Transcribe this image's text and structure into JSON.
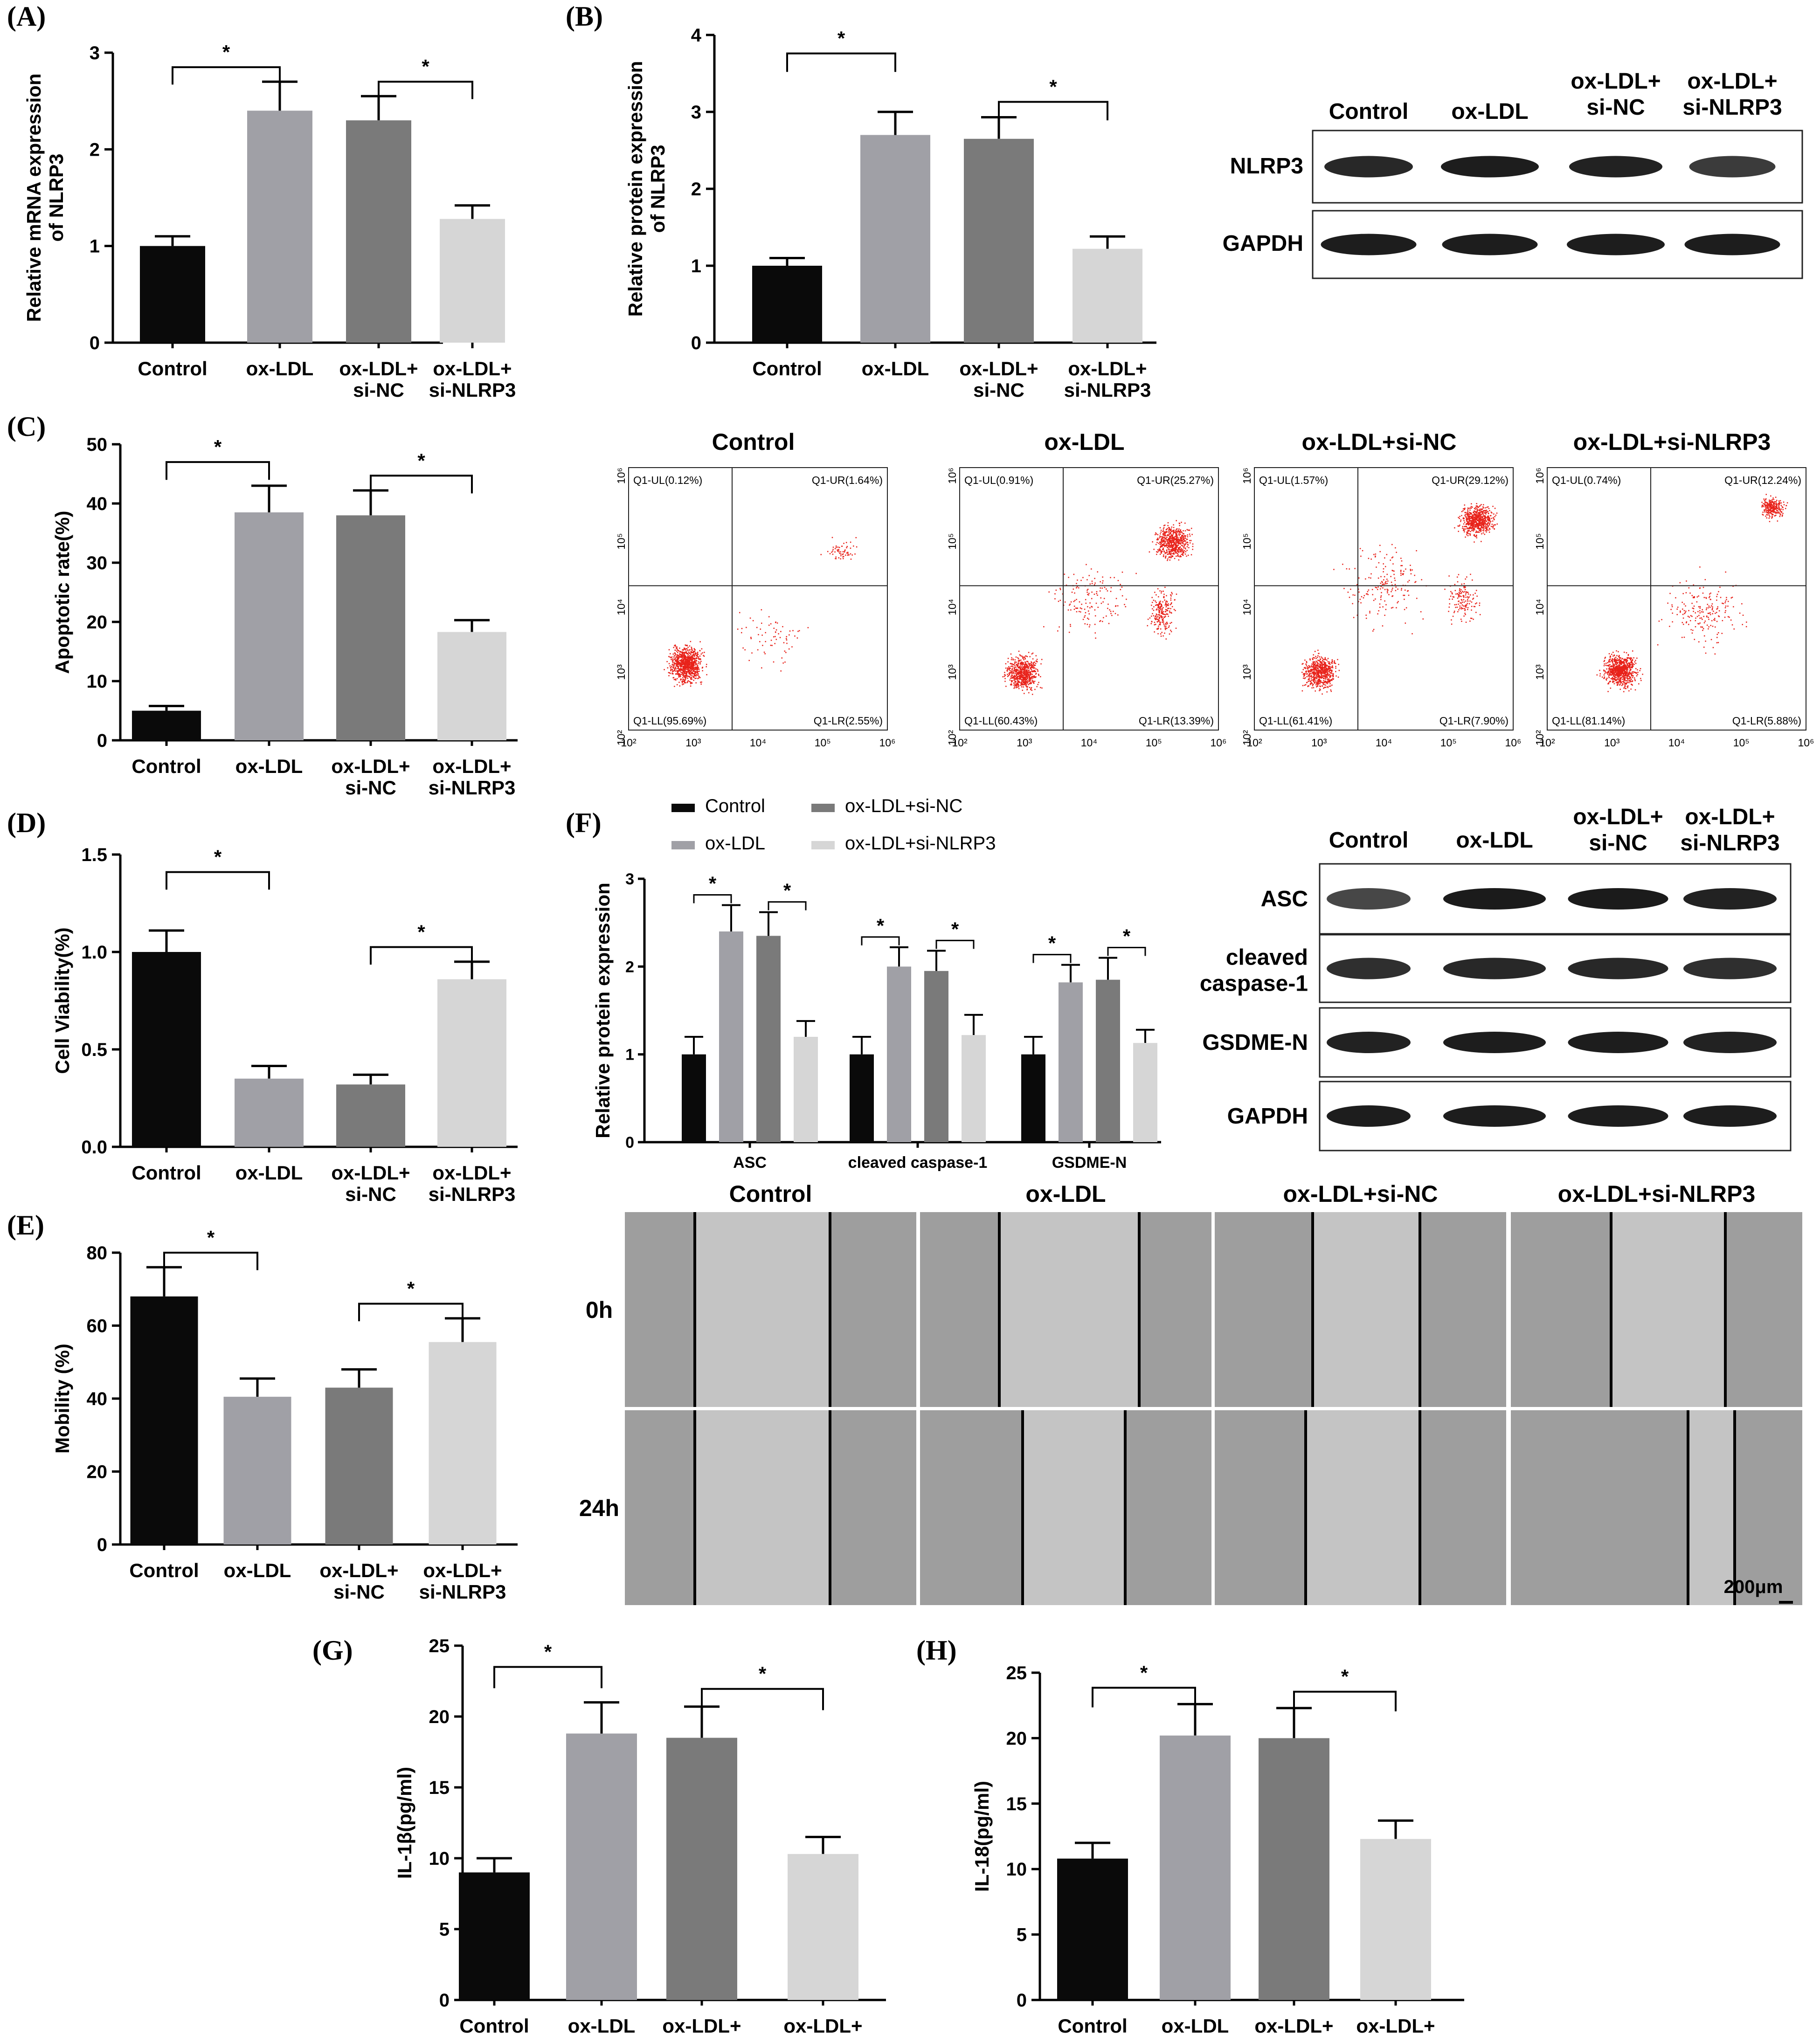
{
  "colors": {
    "control": "#0a0a0a",
    "oxldl": "#a0a0a6",
    "sinc": "#7a7a7a",
    "sinlrp3": "#d6d6d6",
    "dot": "#e8221a"
  },
  "groups": [
    [
      "Control"
    ],
    [
      "ox-LDL"
    ],
    [
      "ox-LDL+",
      "si-NC"
    ],
    [
      "ox-LDL+",
      "si-NLRP3"
    ]
  ],
  "group_titles": [
    "Control",
    "ox-LDL",
    "ox-LDL+si-NC",
    "ox-LDL+si-NLRP3"
  ],
  "chart_data": [
    {
      "id": "A",
      "type": "bar",
      "panel": "(A)",
      "ylabel": [
        "Relative mRNA expression",
        "of NLRP3"
      ],
      "ylim": [
        0,
        3
      ],
      "yticks": [
        0,
        1,
        2,
        3
      ],
      "values": [
        1.0,
        2.4,
        2.3,
        1.28
      ],
      "errors": [
        0.1,
        0.3,
        0.25,
        0.14
      ],
      "significance": "*"
    },
    {
      "id": "B",
      "type": "bar",
      "panel": "(B)",
      "ylabel": [
        "Relative protein expression",
        "of NLRP3"
      ],
      "ylim": [
        0,
        4
      ],
      "yticks": [
        0,
        1,
        2,
        3,
        4
      ],
      "values": [
        1.0,
        2.7,
        2.65,
        1.22
      ],
      "errors": [
        0.1,
        0.3,
        0.28,
        0.16
      ],
      "significance": "*"
    },
    {
      "id": "C",
      "type": "bar",
      "panel": "(C)",
      "ylabel": [
        "Apoptotic rate(%)"
      ],
      "ylim": [
        0,
        50
      ],
      "yticks": [
        0,
        10,
        20,
        30,
        40,
        50
      ],
      "values": [
        5.0,
        38.5,
        38.0,
        18.3
      ],
      "errors": [
        0.8,
        4.5,
        4.2,
        2.0
      ],
      "significance": "*"
    },
    {
      "id": "D",
      "type": "bar",
      "panel": "(D)",
      "ylabel": [
        "Cell Viability(%)"
      ],
      "ylim": [
        0,
        1.5
      ],
      "yticks": [
        "0.0",
        "0.5",
        "1.0",
        "1.5"
      ],
      "values": [
        1.0,
        0.35,
        0.32,
        0.86
      ],
      "errors": [
        0.11,
        0.065,
        0.05,
        0.09
      ],
      "significance": "*"
    },
    {
      "id": "E",
      "type": "bar",
      "panel": "(E)",
      "ylabel": [
        "Mobility (%)"
      ],
      "ylim": [
        0,
        80
      ],
      "yticks": [
        0,
        20,
        40,
        60,
        80
      ],
      "values": [
        68,
        40.5,
        43,
        55.5
      ],
      "errors": [
        8,
        5,
        5,
        6.5
      ],
      "significance": "*"
    },
    {
      "id": "F",
      "type": "bar",
      "panel": "(F)",
      "ylabel": [
        "Relative protein expression"
      ],
      "ylim": [
        0,
        3
      ],
      "yticks": [
        0,
        1,
        2,
        3
      ],
      "categories": [
        "ASC",
        "cleaved caspase-1",
        "GSDME-N"
      ],
      "series": [
        {
          "name": "Control",
          "values": [
            1.0,
            1.0,
            1.0
          ],
          "errors": [
            0.2,
            0.2,
            0.2
          ]
        },
        {
          "name": "ox-LDL",
          "values": [
            2.4,
            2.0,
            1.82
          ],
          "errors": [
            0.3,
            0.22,
            0.2
          ]
        },
        {
          "name": "ox-LDL+si-NC",
          "values": [
            2.35,
            1.95,
            1.85
          ],
          "errors": [
            0.27,
            0.23,
            0.25
          ]
        },
        {
          "name": "ox-LDL+si-NLRP3",
          "values": [
            1.2,
            1.22,
            1.13
          ],
          "errors": [
            0.18,
            0.23,
            0.15
          ]
        }
      ],
      "significance": "*"
    },
    {
      "id": "G",
      "type": "bar",
      "panel": "(G)",
      "ylabel": [
        "IL-1β(pg/ml)"
      ],
      "ylim": [
        0,
        25
      ],
      "yticks": [
        0,
        5,
        10,
        15,
        20,
        25
      ],
      "values": [
        9.0,
        18.8,
        18.5,
        10.3
      ],
      "errors": [
        1.0,
        2.2,
        2.2,
        1.2
      ],
      "significance": "*"
    },
    {
      "id": "H",
      "type": "bar",
      "panel": "(H)",
      "ylabel": [
        "IL-18(pg/ml)"
      ],
      "ylim": [
        0,
        25
      ],
      "yticks": [
        0,
        5,
        10,
        15,
        20,
        25
      ],
      "values": [
        10.8,
        20.2,
        20.0,
        12.3
      ],
      "errors": [
        1.2,
        2.4,
        2.3,
        1.4
      ],
      "significance": "*"
    }
  ],
  "flow": {
    "axis_ticks": [
      "10²",
      "10³",
      "10⁴",
      "10⁵",
      "10⁶"
    ],
    "plots": [
      {
        "UL": "Q1-UL(0.12%)",
        "UR": "Q1-UR(1.64%)",
        "LL": "Q1-LL(95.69%)",
        "LR": "Q1-LR(2.55%)"
      },
      {
        "UL": "Q1-UL(0.91%)",
        "UR": "Q1-UR(25.27%)",
        "LL": "Q1-LL(60.43%)",
        "LR": "Q1-LR(13.39%)"
      },
      {
        "UL": "Q1-UL(1.57%)",
        "UR": "Q1-UR(29.12%)",
        "LL": "Q1-LL(61.41%)",
        "LR": "Q1-LR(7.90%)"
      },
      {
        "UL": "Q1-UL(0.74%)",
        "UR": "Q1-UR(12.24%)",
        "LL": "Q1-LL(81.14%)",
        "LR": "Q1-LR(5.88%)"
      }
    ]
  },
  "blots": {
    "header": [
      "Control",
      "ox-LDL",
      [
        "ox-LDL+",
        "si-NC"
      ],
      [
        "ox-LDL+",
        "si-NLRP3"
      ]
    ],
    "nlrp3_rows": [
      "NLRP3",
      "GAPDH"
    ],
    "f_rows": [
      "ASC",
      [
        "cleaved",
        "caspase-1"
      ],
      "GSDME-N",
      "GAPDH"
    ]
  },
  "wound": {
    "rows": [
      "0h",
      "24h"
    ],
    "scale": "200μm"
  }
}
